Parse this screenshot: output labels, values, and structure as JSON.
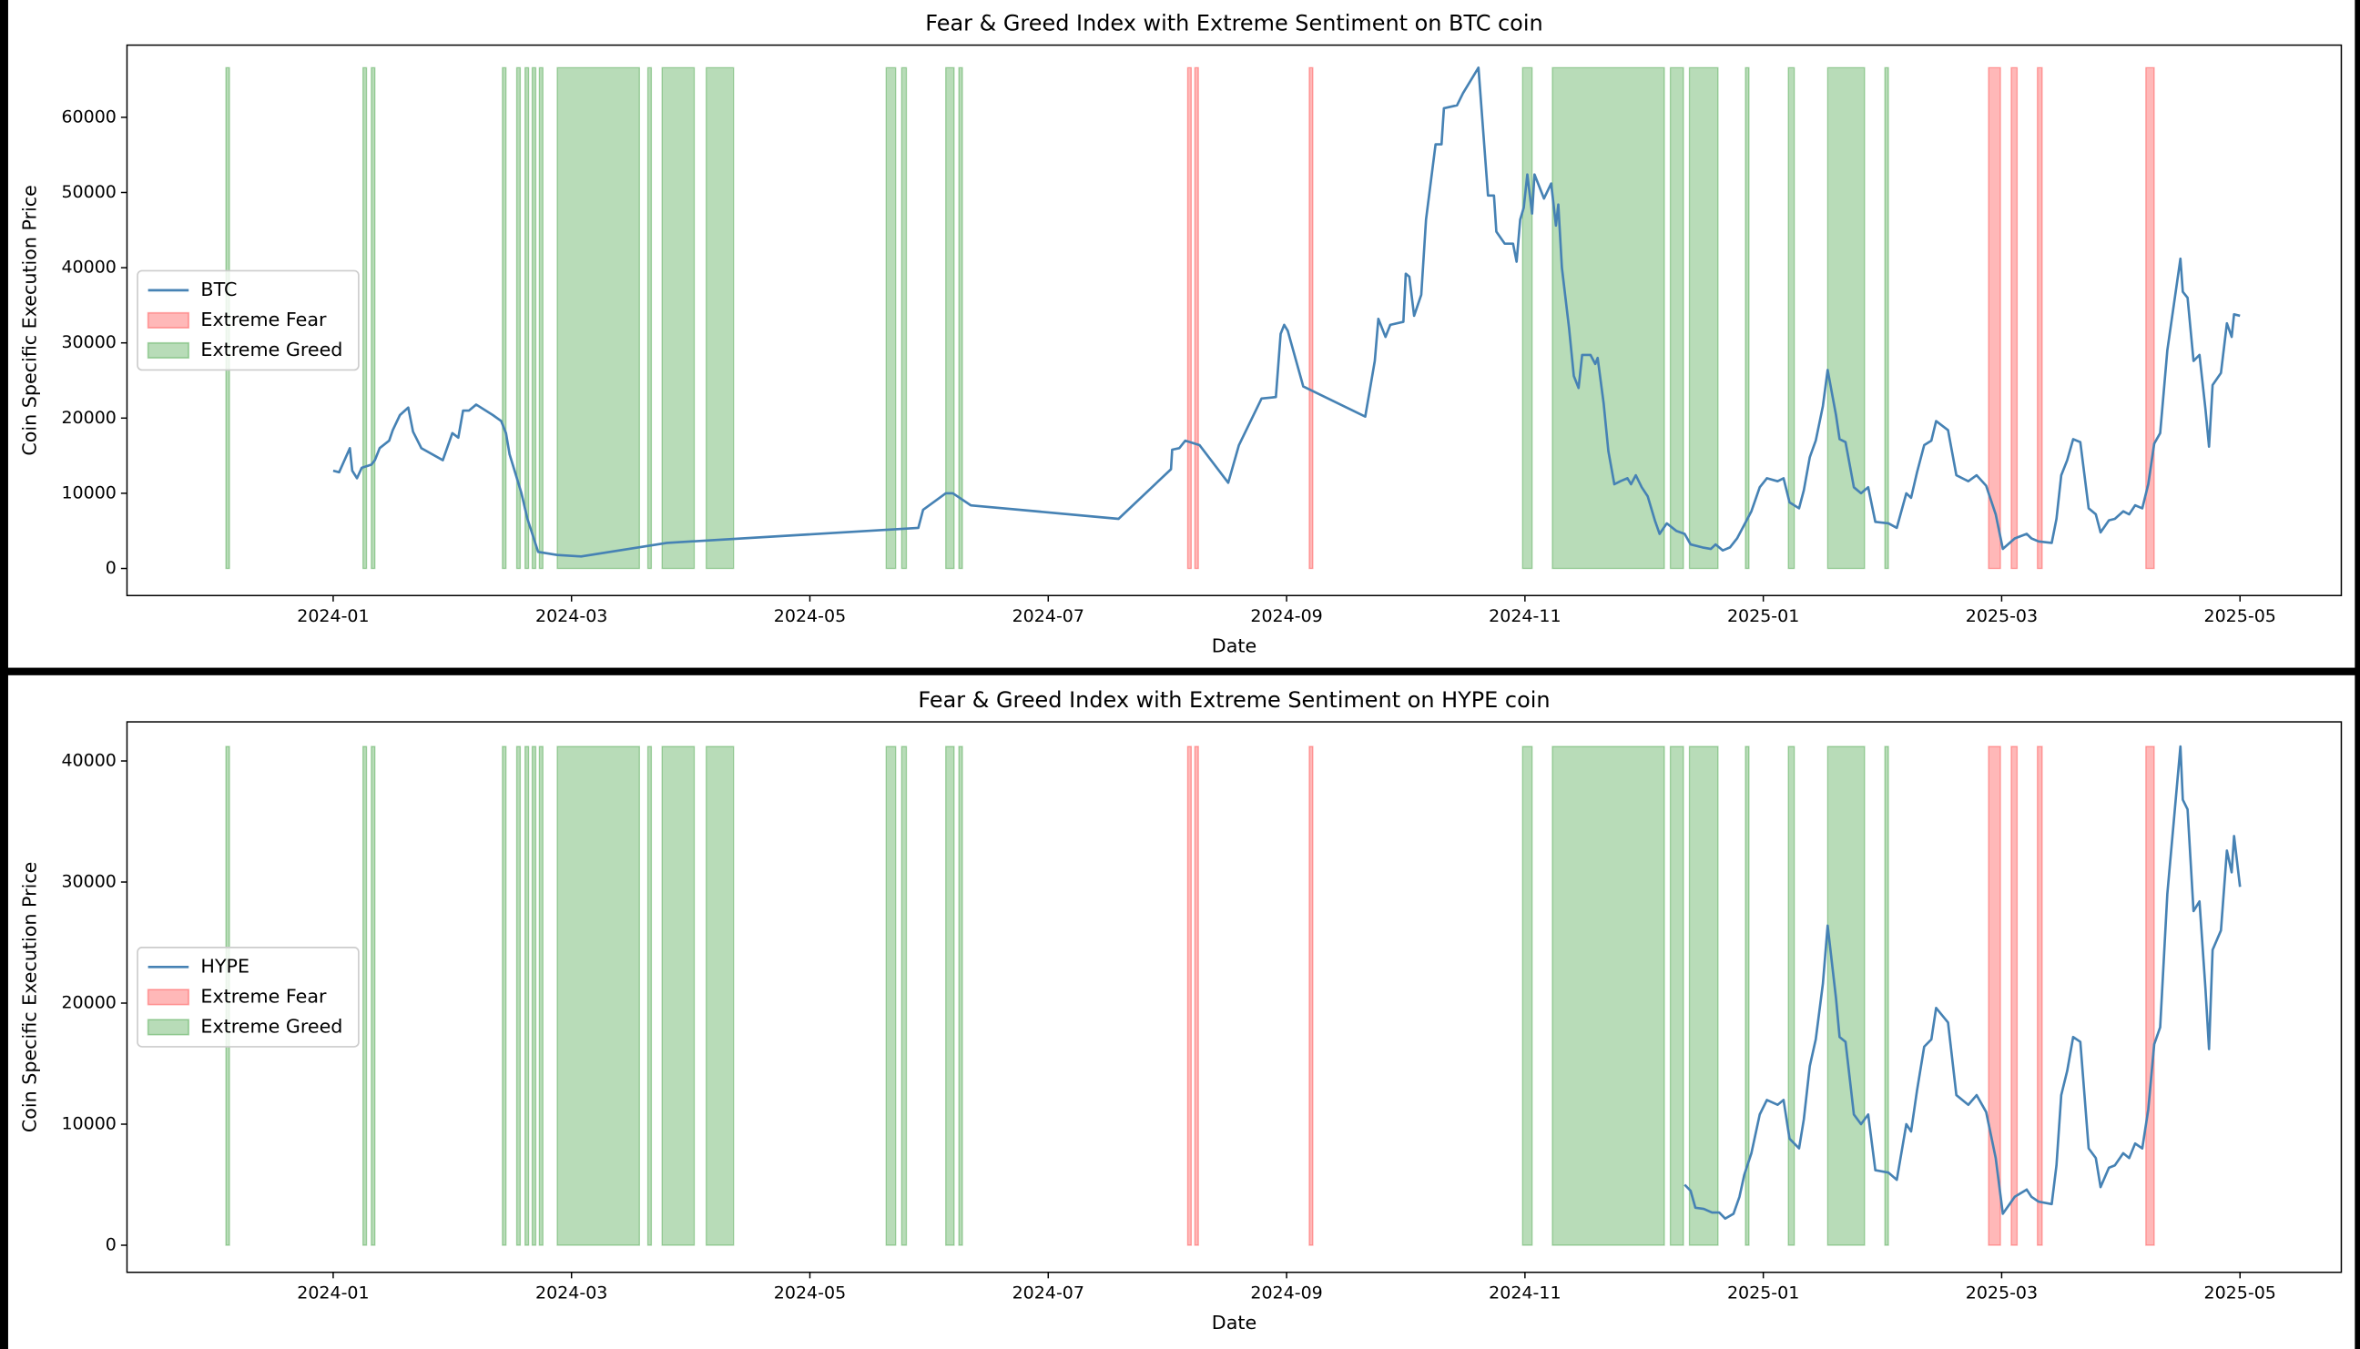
{
  "chart_data": [
    {
      "type": "line",
      "title": "Fear & Greed Index with Extreme Sentiment on BTC coin",
      "x_label": "Date",
      "y_label": "Coin Specific Execution Price",
      "x": [
        0,
        0.05,
        0.14,
        0.16,
        0.2,
        0.24,
        0.32,
        0.35,
        0.39,
        0.47,
        0.5,
        0.56,
        0.63,
        0.67,
        0.74,
        0.92,
        1.0,
        1.05,
        1.09,
        1.14,
        1.2,
        1.34,
        1.41,
        1.45,
        1.48,
        1.58,
        1.63,
        1.72,
        1.88,
        2.08,
        2.8,
        4.91,
        4.95,
        5.14,
        5.2,
        5.35,
        6.59,
        7.03,
        7.04,
        7.1,
        7.15,
        7.27,
        7.51,
        7.6,
        7.79,
        7.91,
        7.95,
        7.98,
        8.01,
        8.14,
        8.66,
        8.74,
        8.77,
        8.83,
        8.87,
        8.98,
        9.0,
        9.03,
        9.07,
        9.13,
        9.17,
        9.25,
        9.3,
        9.32,
        9.43,
        9.48,
        9.61,
        9.69,
        9.74,
        9.76,
        9.83,
        9.9,
        9.93,
        9.96,
        9.99,
        10.02,
        10.06,
        10.08,
        10.16,
        10.22,
        10.26,
        10.28,
        10.31,
        10.37,
        10.41,
        10.45,
        10.48,
        10.55,
        10.59,
        10.61,
        10.66,
        10.7,
        10.75,
        10.8,
        10.86,
        10.89,
        10.93,
        10.98,
        11.03,
        11.09,
        11.13,
        11.19,
        11.27,
        11.34,
        11.39,
        11.49,
        11.56,
        11.6,
        11.66,
        11.72,
        11.78,
        11.84,
        11.9,
        11.97,
        12.03,
        12.12,
        12.17,
        12.22,
        12.3,
        12.34,
        12.39,
        12.44,
        12.5,
        12.54,
        12.61,
        12.64,
        12.69,
        12.76,
        12.82,
        12.88,
        12.94,
        13.05,
        13.12,
        13.2,
        13.24,
        13.29,
        13.35,
        13.41,
        13.45,
        13.55,
        13.62,
        13.72,
        13.79,
        13.87,
        13.95,
        14.01,
        14.11,
        14.21,
        14.25,
        14.31,
        14.42,
        14.46,
        14.5,
        14.55,
        14.6,
        14.66,
        14.73,
        14.79,
        14.83,
        14.9,
        14.95,
        15.02,
        15.07,
        15.12,
        15.18,
        15.23,
        15.28,
        15.33,
        15.39,
        15.5,
        15.52,
        15.56,
        15.61,
        15.66,
        15.71,
        15.74,
        15.77,
        15.84,
        15.89,
        15.93,
        15.95,
        16.0
      ],
      "series": [
        {
          "name": "BTC",
          "color": "#4682b4",
          "values": [
            13000,
            12800,
            16000,
            13000,
            12000,
            13400,
            13800,
            14400,
            16000,
            17000,
            18400,
            20400,
            21400,
            18200,
            16000,
            14400,
            18000,
            17400,
            21000,
            21000,
            21800,
            20400,
            19600,
            18000,
            15200,
            10000,
            6600,
            2200,
            1800,
            1600,
            3400,
            5400,
            7800,
            10000,
            10000,
            8400,
            6600,
            13200,
            15800,
            16000,
            17000,
            16400,
            11400,
            16400,
            22600,
            22800,
            31200,
            32400,
            31600,
            24200,
            20200,
            27600,
            33200,
            30800,
            32400,
            32800,
            39200,
            38800,
            33600,
            36400,
            46400,
            56400,
            56400,
            61200,
            61600,
            63200,
            66600,
            49600,
            49600,
            44800,
            43200,
            43200,
            40800,
            46400,
            48000,
            52400,
            47200,
            52400,
            49200,
            51200,
            45600,
            48400,
            40000,
            32000,
            25600,
            24000,
            28400,
            28400,
            27200,
            28000,
            22000,
            15600,
            11200,
            11600,
            12000,
            11200,
            12400,
            10800,
            9600,
            6400,
            4600,
            6000,
            5000,
            4600,
            3200,
            2800,
            2600,
            3200,
            2400,
            2800,
            4000,
            5800,
            7600,
            10800,
            12000,
            11600,
            12000,
            8800,
            8000,
            10400,
            14800,
            17000,
            21600,
            26400,
            20400,
            17200,
            16800,
            10800,
            10000,
            10800,
            6200,
            6000,
            5400,
            10000,
            9400,
            12800,
            16400,
            17000,
            19600,
            18400,
            12400,
            11600,
            12400,
            11000,
            7200,
            2600,
            4000,
            4600,
            4000,
            3600,
            3400,
            6600,
            12400,
            14400,
            17200,
            16800,
            8000,
            7200,
            4800,
            6400,
            6600,
            7600,
            7200,
            8400,
            8000,
            11200,
            16600,
            18000,
            29000,
            41200,
            36800,
            36000,
            27600,
            28400,
            21200,
            16200,
            24400,
            26000,
            32600,
            30800,
            33800,
            33600
          ]
        }
      ],
      "spans": [
        {
          "name": "Extreme Fear",
          "color": "red",
          "ranges": [
            [
              7.17,
              7.2
            ],
            [
              7.23,
              7.26
            ],
            [
              8.19,
              8.22
            ],
            [
              13.89,
              13.99
            ],
            [
              14.08,
              14.13
            ],
            [
              14.3,
              14.34
            ],
            [
              15.21,
              15.28
            ]
          ]
        },
        {
          "name": "Extreme Greed",
          "color": "green",
          "ranges": [
            [
              -0.9,
              -0.87
            ],
            [
              0.25,
              0.28
            ],
            [
              0.32,
              0.35
            ],
            [
              1.42,
              1.45
            ],
            [
              1.54,
              1.57
            ],
            [
              1.61,
              1.64
            ],
            [
              1.67,
              1.7
            ],
            [
              1.73,
              1.76
            ],
            [
              1.88,
              2.57
            ],
            [
              2.64,
              2.67
            ],
            [
              2.76,
              3.03
            ],
            [
              3.13,
              3.36
            ],
            [
              4.64,
              4.72
            ],
            [
              4.77,
              4.81
            ],
            [
              5.14,
              5.21
            ],
            [
              5.25,
              5.28
            ],
            [
              9.98,
              10.06
            ],
            [
              10.23,
              11.17
            ],
            [
              11.22,
              11.33
            ],
            [
              11.38,
              11.62
            ],
            [
              11.85,
              11.88
            ],
            [
              12.21,
              12.26
            ],
            [
              12.54,
              12.85
            ],
            [
              13.02,
              13.05
            ]
          ]
        }
      ],
      "xlim": [
        -1.73,
        16.85
      ],
      "xticks": [
        {
          "value": 0,
          "label": "2024-01"
        },
        {
          "value": 2,
          "label": "2024-03"
        },
        {
          "value": 4,
          "label": "2024-05"
        },
        {
          "value": 6,
          "label": "2024-07"
        },
        {
          "value": 8,
          "label": "2024-09"
        },
        {
          "value": 10,
          "label": "2024-11"
        },
        {
          "value": 12,
          "label": "2025-01"
        },
        {
          "value": 14,
          "label": "2025-03"
        },
        {
          "value": 16,
          "label": "2025-05"
        }
      ],
      "ylim": [
        -3600,
        69600
      ],
      "yticks": [
        0,
        10000,
        20000,
        30000,
        40000,
        50000,
        60000
      ],
      "legend": "center left"
    },
    {
      "type": "line",
      "title": "Fear & Greed Index with Extreme Sentiment on HYPE coin",
      "x_label": "Date",
      "y_label": "Coin Specific Execution Price",
      "x": [
        11.34,
        11.39,
        11.43,
        11.5,
        11.57,
        11.63,
        11.68,
        11.75,
        11.8,
        11.84,
        11.9,
        11.97,
        12.03,
        12.12,
        12.17,
        12.22,
        12.3,
        12.34,
        12.39,
        12.44,
        12.5,
        12.54,
        12.61,
        12.64,
        12.69,
        12.76,
        12.82,
        12.88,
        12.94,
        13.05,
        13.12,
        13.2,
        13.24,
        13.29,
        13.35,
        13.41,
        13.45,
        13.55,
        13.62,
        13.72,
        13.79,
        13.87,
        13.95,
        14.01,
        14.11,
        14.21,
        14.25,
        14.31,
        14.42,
        14.46,
        14.5,
        14.55,
        14.6,
        14.66,
        14.73,
        14.79,
        14.83,
        14.9,
        14.95,
        15.02,
        15.07,
        15.12,
        15.18,
        15.23,
        15.28,
        15.33,
        15.39,
        15.5,
        15.52,
        15.56,
        15.61,
        15.66,
        15.71,
        15.74,
        15.77,
        15.84,
        15.89,
        15.93,
        15.95,
        16.0
      ],
      "series": [
        {
          "name": "HYPE",
          "color": "#4682b4",
          "values": [
            5000,
            4500,
            3100,
            3000,
            2700,
            2700,
            2200,
            2600,
            4000,
            5800,
            7600,
            10800,
            12000,
            11600,
            12000,
            8800,
            8000,
            10400,
            14800,
            17000,
            21600,
            26400,
            20400,
            17200,
            16800,
            10800,
            10000,
            10800,
            6200,
            6000,
            5400,
            10000,
            9400,
            12800,
            16400,
            17000,
            19600,
            18400,
            12400,
            11600,
            12400,
            11000,
            7200,
            2600,
            4000,
            4600,
            4000,
            3600,
            3400,
            6600,
            12400,
            14400,
            17200,
            16800,
            8000,
            7200,
            4800,
            6400,
            6600,
            7600,
            7200,
            8400,
            8000,
            11200,
            16600,
            18000,
            29000,
            41200,
            36800,
            36000,
            27600,
            28400,
            21200,
            16200,
            24400,
            26000,
            32600,
            30800,
            33800,
            29600
          ]
        }
      ],
      "spans": [
        {
          "name": "Extreme Fear",
          "color": "red",
          "ranges": [
            [
              7.17,
              7.2
            ],
            [
              7.23,
              7.26
            ],
            [
              8.19,
              8.22
            ],
            [
              13.89,
              13.99
            ],
            [
              14.08,
              14.13
            ],
            [
              14.3,
              14.34
            ],
            [
              15.21,
              15.28
            ]
          ]
        },
        {
          "name": "Extreme Greed",
          "color": "green",
          "ranges": [
            [
              -0.9,
              -0.87
            ],
            [
              0.25,
              0.28
            ],
            [
              0.32,
              0.35
            ],
            [
              1.42,
              1.45
            ],
            [
              1.54,
              1.57
            ],
            [
              1.61,
              1.64
            ],
            [
              1.67,
              1.7
            ],
            [
              1.73,
              1.76
            ],
            [
              1.88,
              2.57
            ],
            [
              2.64,
              2.67
            ],
            [
              2.76,
              3.03
            ],
            [
              3.13,
              3.36
            ],
            [
              4.64,
              4.72
            ],
            [
              4.77,
              4.81
            ],
            [
              5.14,
              5.21
            ],
            [
              5.25,
              5.28
            ],
            [
              9.98,
              10.06
            ],
            [
              10.23,
              11.17
            ],
            [
              11.22,
              11.33
            ],
            [
              11.38,
              11.62
            ],
            [
              11.85,
              11.88
            ],
            [
              12.21,
              12.26
            ],
            [
              12.54,
              12.85
            ],
            [
              13.02,
              13.05
            ]
          ]
        }
      ],
      "xlim": [
        -1.73,
        16.85
      ],
      "xticks": [
        {
          "value": 0,
          "label": "2024-01"
        },
        {
          "value": 2,
          "label": "2024-03"
        },
        {
          "value": 4,
          "label": "2024-05"
        },
        {
          "value": 6,
          "label": "2024-07"
        },
        {
          "value": 8,
          "label": "2024-09"
        },
        {
          "value": 10,
          "label": "2024-11"
        },
        {
          "value": 12,
          "label": "2025-01"
        },
        {
          "value": 14,
          "label": "2025-03"
        },
        {
          "value": 16,
          "label": "2025-05"
        }
      ],
      "ylim": [
        -2236,
        43230
      ],
      "yticks": [
        0,
        10000,
        20000,
        30000,
        40000
      ],
      "legend": "center left"
    }
  ]
}
